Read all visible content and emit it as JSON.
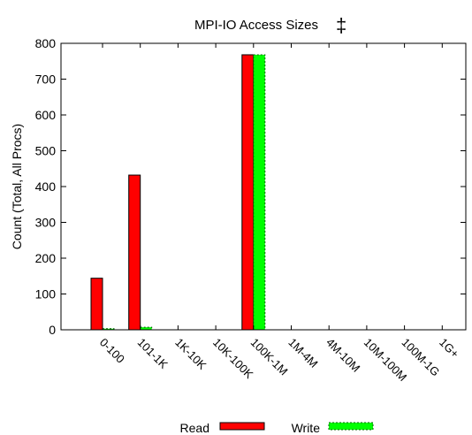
{
  "chart_data": {
    "type": "bar",
    "title": "MPI-IO Access Sizes",
    "title_symbol": "‡",
    "xlabel": "",
    "ylabel": "Count (Total, All Procs)",
    "ylim": [
      0,
      800
    ],
    "yticks": [
      0,
      100,
      200,
      300,
      400,
      500,
      600,
      700,
      800
    ],
    "grid": false,
    "legend_position": "bottom-center",
    "categories": [
      "0-100",
      "101-1K",
      "1K-10K",
      "10K-100K",
      "100K-1M",
      "1M-4M",
      "4M-10M",
      "10M-100M",
      "100M-1G",
      "1G+"
    ],
    "series": [
      {
        "name": "Read",
        "color": "#ff0000",
        "pattern": "solid",
        "values": [
          144,
          432,
          0,
          0,
          768,
          0,
          0,
          0,
          0,
          0
        ]
      },
      {
        "name": "Write",
        "color": "#00ff00",
        "pattern": "dashed",
        "values": [
          3,
          7,
          0,
          0,
          768,
          0,
          0,
          0,
          0,
          0
        ]
      }
    ]
  }
}
